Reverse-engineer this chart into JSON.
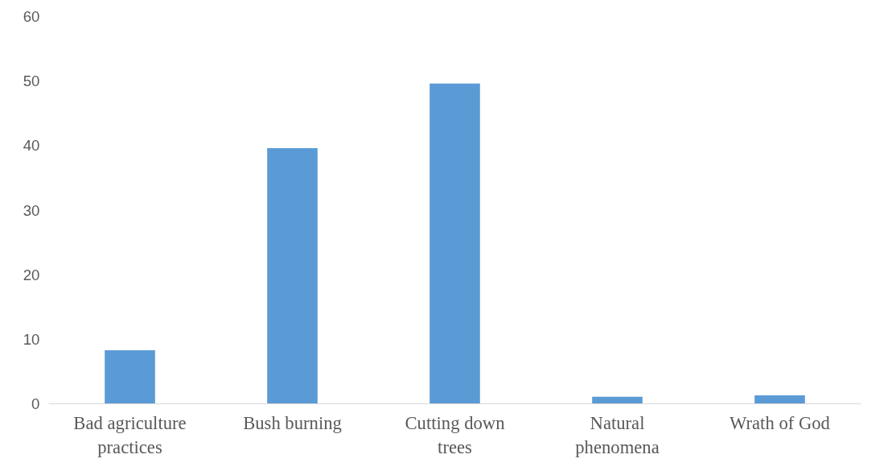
{
  "chart_data": {
    "type": "bar",
    "categories": [
      "Bad agriculture practices",
      "Bush burning",
      "Cutting down trees",
      "Natural phenomena",
      "Wrath of God"
    ],
    "values": [
      8.3,
      39.6,
      49.6,
      1.1,
      1.3
    ],
    "color": "#5b9bd5",
    "ylim": [
      0,
      60
    ],
    "yticks": [
      0,
      10,
      20,
      30,
      40,
      50,
      60
    ],
    "grid": false
  }
}
